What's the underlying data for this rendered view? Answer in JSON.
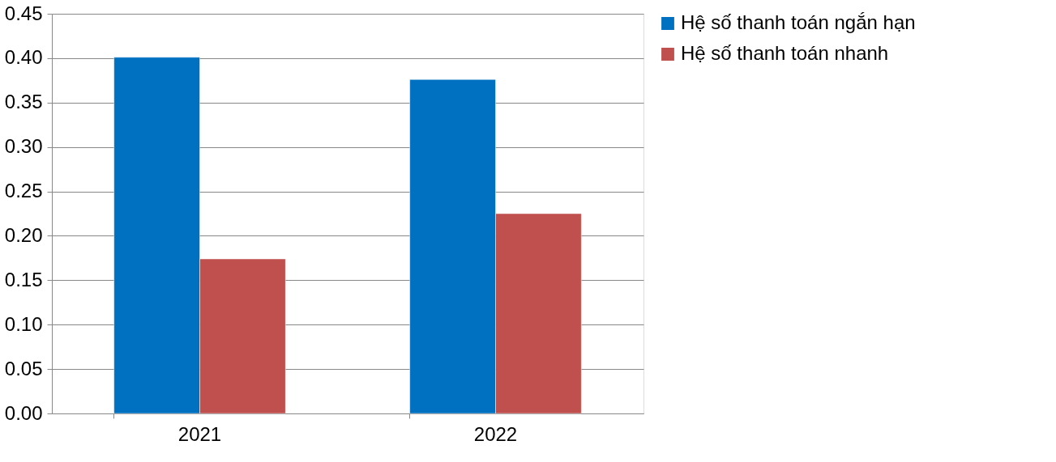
{
  "chart_data": {
    "type": "bar",
    "categories": [
      "2021",
      "2022"
    ],
    "series": [
      {
        "name": "Hệ số thanh toán ngắn hạn",
        "color": "#0070c0",
        "values": [
          0.401,
          0.376
        ]
      },
      {
        "name": "Hệ số thanh toán nhanh",
        "color": "#c0504d",
        "values": [
          0.174,
          0.225
        ]
      }
    ],
    "ylim": [
      0,
      0.45
    ],
    "yticks": [
      {
        "value": 0,
        "label": "0.00"
      },
      {
        "value": 0.05,
        "label": "0.05"
      },
      {
        "value": 0.1,
        "label": "0.10"
      },
      {
        "value": 0.15,
        "label": "0.15"
      },
      {
        "value": 0.2,
        "label": "0.20"
      },
      {
        "value": 0.25,
        "label": "0.25"
      },
      {
        "value": 0.3,
        "label": "0.30"
      },
      {
        "value": 0.35,
        "label": "0.35"
      },
      {
        "value": 0.4,
        "label": "0.40"
      },
      {
        "value": 0.45,
        "label": "0.45"
      }
    ],
    "grid": "y",
    "legend": "right"
  }
}
